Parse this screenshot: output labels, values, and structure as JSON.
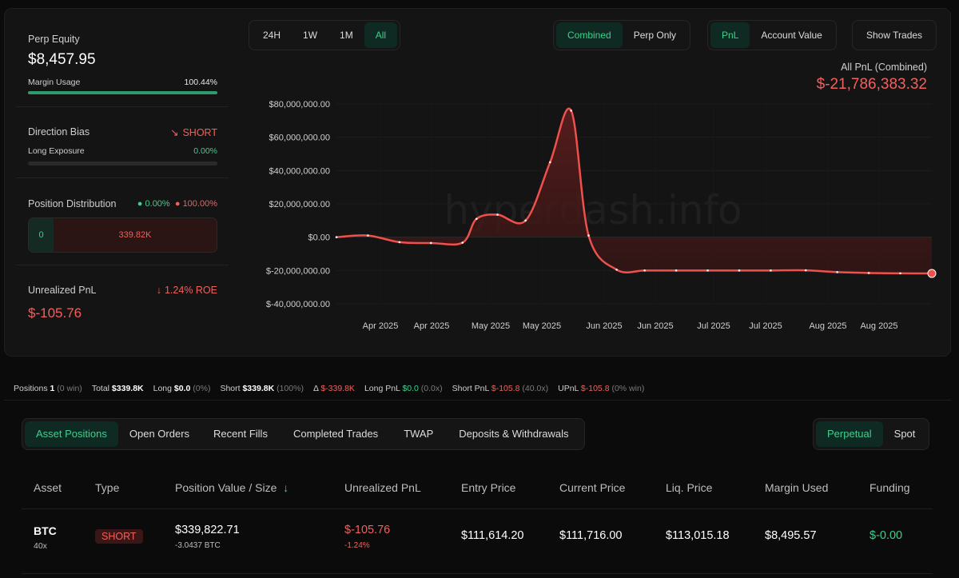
{
  "left": {
    "perp_equity_label": "Perp Equity",
    "perp_equity_value": "$8,457.95",
    "margin_usage_label": "Margin Usage",
    "margin_usage_value": "100.44%",
    "margin_usage_fraction": 1.0,
    "direction_bias_label": "Direction Bias",
    "direction_bias_value": "SHORT",
    "long_exposure_label": "Long Exposure",
    "long_exposure_value": "0.00%",
    "position_distribution_label": "Position Distribution",
    "long_pct": "0.00%",
    "short_pct": "100.00%",
    "dist_long_value": "0",
    "dist_short_value": "339.82K",
    "unrealized_pnl_label": "Unrealized PnL",
    "roe_value": "1.24% ROE",
    "unrealized_pnl_value": "$-105.76"
  },
  "toolbar": {
    "range_tabs": [
      "24H",
      "1W",
      "1M",
      "All"
    ],
    "range_active": "All",
    "mode_tabs": [
      "Combined",
      "Perp Only"
    ],
    "mode_active": "Combined",
    "metric_tabs": [
      "PnL",
      "Account Value"
    ],
    "metric_active": "PnL",
    "show_trades_label": "Show Trades"
  },
  "chart_header": {
    "title": "All PnL (Combined)",
    "value": "$-21,786,383.32"
  },
  "watermark": "hyperdash.info",
  "chart_data": {
    "type": "area",
    "ylim": [
      -40000000,
      80000000
    ],
    "y_ticks": [
      80000000,
      60000000,
      40000000,
      20000000,
      0,
      -20000000,
      -40000000
    ],
    "y_tick_labels": [
      "$80,000,000.00",
      "$60,000,000.00",
      "$40,000,000.00",
      "$20,000,000.00",
      "$0.00",
      "$-20,000,000.00",
      "$-40,000,000.00"
    ],
    "x_tick_labels": [
      "Apr 2025",
      "Apr 2025",
      "May 2025",
      "May 2025",
      "Jun 2025",
      "Jun 2025",
      "Jul 2025",
      "Jul 2025",
      "Aug 2025",
      "Aug 2025"
    ],
    "x": [
      "2025-03-12",
      "2025-03-21",
      "2025-03-30",
      "2025-04-08",
      "2025-04-17",
      "2025-04-21",
      "2025-04-27",
      "2025-05-05",
      "2025-05-12",
      "2025-05-18",
      "2025-05-23",
      "2025-05-31",
      "2025-06-08",
      "2025-06-17",
      "2025-06-26",
      "2025-07-05",
      "2025-07-14",
      "2025-07-24",
      "2025-08-02",
      "2025-08-11",
      "2025-08-20",
      "2025-08-29"
    ],
    "series": [
      {
        "values": [
          0,
          1000000,
          -3000000,
          -3500000,
          -3300000,
          11000000,
          13500000,
          10000000,
          45000000,
          76000000,
          1000000,
          -19500000,
          -20000000,
          -20000000,
          -20000000,
          -20000000,
          -20000000,
          -19900000,
          -21000000,
          -21500000,
          -21700000,
          -21786383
        ]
      }
    ],
    "xlabel": "",
    "ylabel": "",
    "grid": true,
    "colors": {
      "line": "#f0504c",
      "fill": "#5a1d1d"
    }
  },
  "statbar": {
    "positions_label": "Positions",
    "positions_value": "1",
    "positions_note": "(0 win)",
    "total_label": "Total",
    "total_value": "$339.8K",
    "long_label": "Long",
    "long_value": "$0.0",
    "long_note": "(0%)",
    "short_label": "Short",
    "short_value": "$339.8K",
    "short_note": "(100%)",
    "delta_label": "Δ",
    "delta_value": "$-339.8K",
    "long_pnl_label": "Long PnL",
    "long_pnl_value": "$0.0",
    "long_pnl_note": "(0.0x)",
    "short_pnl_label": "Short PnL",
    "short_pnl_value": "$-105.8",
    "short_pnl_note": "(40.0x)",
    "upnl_label": "UPnL",
    "upnl_value": "$-105.8",
    "upnl_note": "(0% win)"
  },
  "tabs": {
    "items": [
      "Asset Positions",
      "Open Orders",
      "Recent Fills",
      "Completed Trades",
      "TWAP",
      "Deposits & Withdrawals"
    ],
    "active": "Asset Positions",
    "market_items": [
      "Perpetual",
      "Spot"
    ],
    "market_active": "Perpetual"
  },
  "table": {
    "headers": [
      "Asset",
      "Type",
      "Position Value / Size",
      "Unrealized PnL",
      "Entry Price",
      "Current Price",
      "Liq. Price",
      "Margin Used",
      "Funding"
    ],
    "sort_icon": "arrow-down-icon",
    "rows": [
      {
        "asset": "BTC",
        "leverage": "40x",
        "type": "SHORT",
        "position_value": "$339,822.71",
        "size": "-3.0437 BTC",
        "upnl": "$-105.76",
        "upnl_pct": "-1.24%",
        "entry": "$111,614.20",
        "current": "$111,716.00",
        "liq": "$113,015.18",
        "margin": "$8,495.57",
        "funding": "$-0.00"
      }
    ]
  },
  "colors": {
    "accent_green": "#3ecf8e",
    "red": "#f0605d",
    "panel": "#141414",
    "bg": "#0b0b0b"
  }
}
